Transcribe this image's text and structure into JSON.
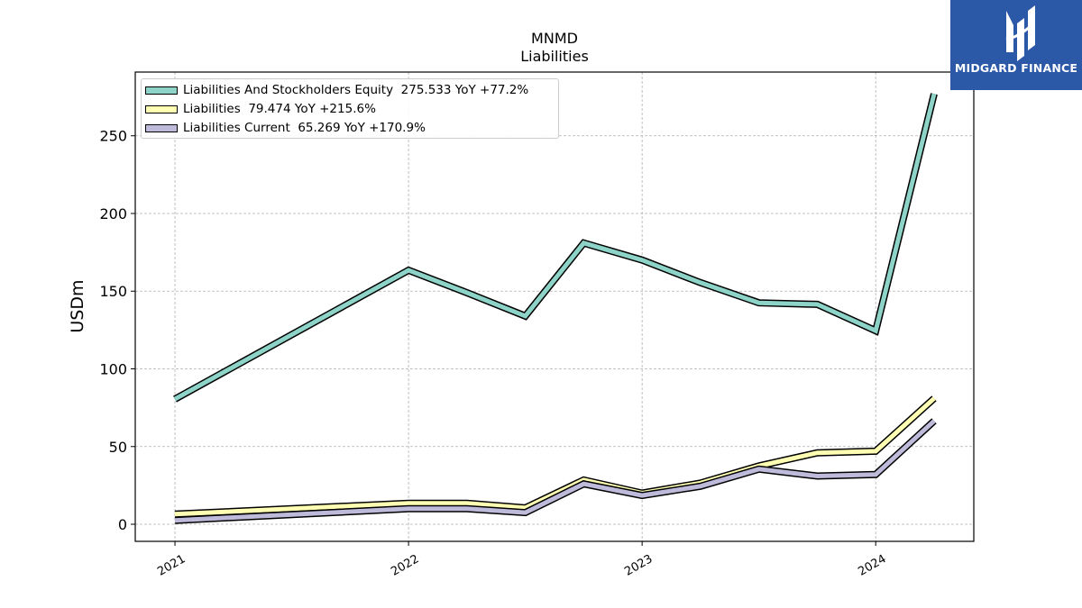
{
  "header": {
    "title": "MNMD",
    "subtitle": "Liabilities"
  },
  "logo": {
    "text": "MIDGARD FINANCE",
    "color": "#2c58a8"
  },
  "chart_data": {
    "type": "line",
    "ylabel": "USDm",
    "xlabel": "",
    "ylim": [
      -11,
      291
    ],
    "xlim": [
      2020.83,
      2024.42
    ],
    "yticks": [
      0,
      50,
      100,
      150,
      200,
      250
    ],
    "xticks": [
      {
        "value": 2021,
        "label": "2021"
      },
      {
        "value": 2022,
        "label": "2022"
      },
      {
        "value": 2023,
        "label": "2023"
      },
      {
        "value": 2024,
        "label": "2024"
      }
    ],
    "grid": true,
    "legend_position": "top-left",
    "x": [
      2021.0,
      2022.0,
      2022.25,
      2022.5,
      2022.75,
      2023.0,
      2023.25,
      2023.5,
      2023.75,
      2024.0,
      2024.25
    ],
    "series": [
      {
        "name": "Liabilities And Stockholders Equity",
        "legend": "Liabilities And Stockholders Equity  275.533 YoY +77.2%",
        "color": "#8dd3c7",
        "values": [
          80.5,
          163.5,
          149.0,
          134.0,
          181.0,
          170.0,
          155.5,
          142.5,
          141.5,
          124.5,
          277.0
        ]
      },
      {
        "name": "Liabilities",
        "legend": "Liabilities  79.474 YoY +215.6%",
        "color": "#ffffb3",
        "values": [
          6.5,
          13.5,
          13.5,
          10.5,
          28.5,
          20.0,
          26.5,
          37.5,
          46.0,
          47.0,
          81.0
        ]
      },
      {
        "name": "Liabilities Current",
        "legend": "Liabilities Current  65.269 YoY +170.9%",
        "color": "#bebada",
        "values": [
          2.5,
          10.0,
          10.0,
          7.5,
          26.0,
          18.5,
          24.5,
          35.5,
          31.0,
          32.0,
          66.5
        ]
      }
    ]
  }
}
